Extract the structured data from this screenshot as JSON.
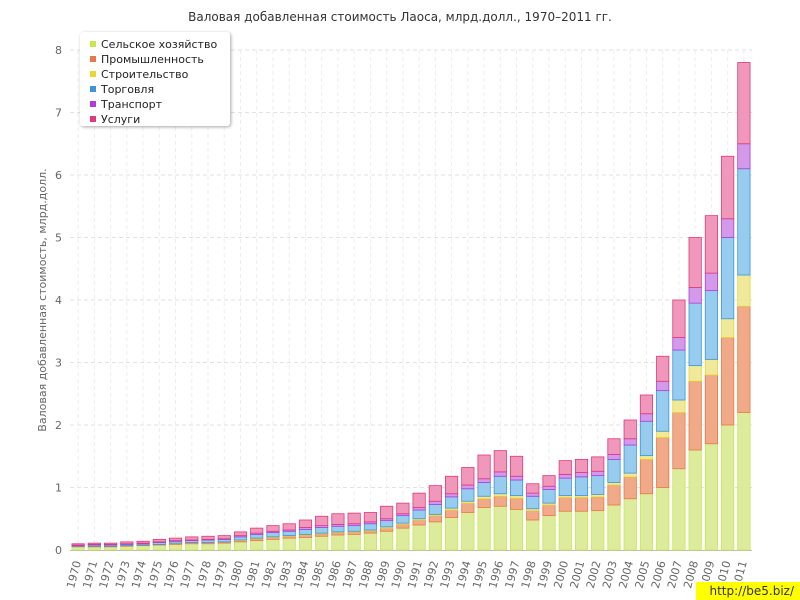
{
  "chart_data": {
    "type": "bar",
    "stacked": true,
    "title": "Валовая добавленная стоимость Лаоса, млрд.долл., 1970–2011 гг.",
    "ylabel": "Валовая добавленная стоимость, млрд.долл.",
    "xlabel": "",
    "ylim": [
      0,
      8
    ],
    "yticks": [
      0,
      1,
      2,
      3,
      4,
      5,
      6,
      7,
      8
    ],
    "grid": true,
    "legend_position": "top-left",
    "categories": [
      "1970",
      "1971",
      "1972",
      "1973",
      "1974",
      "1975",
      "1976",
      "1977",
      "1978",
      "1979",
      "1980",
      "1981",
      "1982",
      "1983",
      "1984",
      "1985",
      "1986",
      "1987",
      "1988",
      "1989",
      "1990",
      "1991",
      "1992",
      "1993",
      "1994",
      "1995",
      "1996",
      "1997",
      "1998",
      "1999",
      "2000",
      "2001",
      "2002",
      "2003",
      "2004",
      "2005",
      "2006",
      "2007",
      "2008",
      "2009",
      "2010",
      "2011"
    ],
    "series": [
      {
        "name": "Сельское хозяйство",
        "color": "#c8e650",
        "fill": "#dcec9c",
        "values": [
          0.05,
          0.05,
          0.05,
          0.06,
          0.07,
          0.08,
          0.09,
          0.1,
          0.1,
          0.11,
          0.13,
          0.15,
          0.17,
          0.19,
          0.2,
          0.22,
          0.24,
          0.25,
          0.27,
          0.3,
          0.35,
          0.4,
          0.45,
          0.52,
          0.6,
          0.68,
          0.7,
          0.65,
          0.48,
          0.55,
          0.62,
          0.62,
          0.63,
          0.72,
          0.82,
          0.9,
          1.0,
          1.3,
          1.6,
          1.7,
          2.0,
          2.2
        ]
      },
      {
        "name": "Промышленность",
        "color": "#e8784a",
        "fill": "#f0aa88",
        "values": [
          0.01,
          0.01,
          0.01,
          0.01,
          0.01,
          0.01,
          0.02,
          0.02,
          0.02,
          0.02,
          0.02,
          0.03,
          0.03,
          0.03,
          0.04,
          0.04,
          0.04,
          0.04,
          0.04,
          0.05,
          0.06,
          0.08,
          0.1,
          0.12,
          0.15,
          0.14,
          0.16,
          0.18,
          0.15,
          0.17,
          0.22,
          0.22,
          0.22,
          0.32,
          0.35,
          0.55,
          0.8,
          0.9,
          1.1,
          1.1,
          1.4,
          1.7
        ]
      },
      {
        "name": "Строительство",
        "color": "#e8d830",
        "fill": "#f0e89a",
        "values": [
          0.0,
          0.0,
          0.0,
          0.0,
          0.0,
          0.0,
          0.0,
          0.0,
          0.0,
          0.0,
          0.01,
          0.01,
          0.01,
          0.01,
          0.01,
          0.01,
          0.01,
          0.01,
          0.01,
          0.02,
          0.02,
          0.02,
          0.02,
          0.03,
          0.03,
          0.04,
          0.04,
          0.04,
          0.03,
          0.03,
          0.03,
          0.03,
          0.04,
          0.04,
          0.06,
          0.06,
          0.1,
          0.2,
          0.25,
          0.25,
          0.3,
          0.5
        ]
      },
      {
        "name": "Торговля",
        "color": "#3a96d8",
        "fill": "#98ccee",
        "values": [
          0.01,
          0.02,
          0.02,
          0.02,
          0.02,
          0.03,
          0.03,
          0.03,
          0.04,
          0.04,
          0.05,
          0.06,
          0.07,
          0.07,
          0.08,
          0.09,
          0.09,
          0.09,
          0.1,
          0.1,
          0.12,
          0.14,
          0.16,
          0.18,
          0.2,
          0.22,
          0.28,
          0.25,
          0.2,
          0.22,
          0.28,
          0.3,
          0.3,
          0.37,
          0.45,
          0.55,
          0.65,
          0.8,
          1.0,
          1.1,
          1.3,
          1.7
        ]
      },
      {
        "name": "Транспорт",
        "color": "#b03cd8",
        "fill": "#d49aea",
        "values": [
          0.01,
          0.01,
          0.01,
          0.01,
          0.01,
          0.01,
          0.01,
          0.01,
          0.01,
          0.01,
          0.02,
          0.02,
          0.02,
          0.02,
          0.03,
          0.03,
          0.03,
          0.03,
          0.03,
          0.03,
          0.03,
          0.04,
          0.05,
          0.05,
          0.06,
          0.06,
          0.07,
          0.06,
          0.05,
          0.05,
          0.06,
          0.07,
          0.07,
          0.08,
          0.1,
          0.12,
          0.15,
          0.2,
          0.25,
          0.28,
          0.3,
          0.4
        ]
      },
      {
        "name": "Услуги",
        "color": "#e03878",
        "fill": "#f098bc",
        "values": [
          0.02,
          0.02,
          0.02,
          0.03,
          0.03,
          0.04,
          0.04,
          0.05,
          0.05,
          0.05,
          0.06,
          0.08,
          0.09,
          0.1,
          0.12,
          0.15,
          0.17,
          0.17,
          0.15,
          0.2,
          0.17,
          0.23,
          0.25,
          0.28,
          0.28,
          0.38,
          0.34,
          0.32,
          0.15,
          0.17,
          0.22,
          0.21,
          0.23,
          0.25,
          0.3,
          0.3,
          0.4,
          0.6,
          0.8,
          0.92,
          1.0,
          1.3
        ]
      }
    ]
  },
  "watermark": "http://be5.biz/"
}
